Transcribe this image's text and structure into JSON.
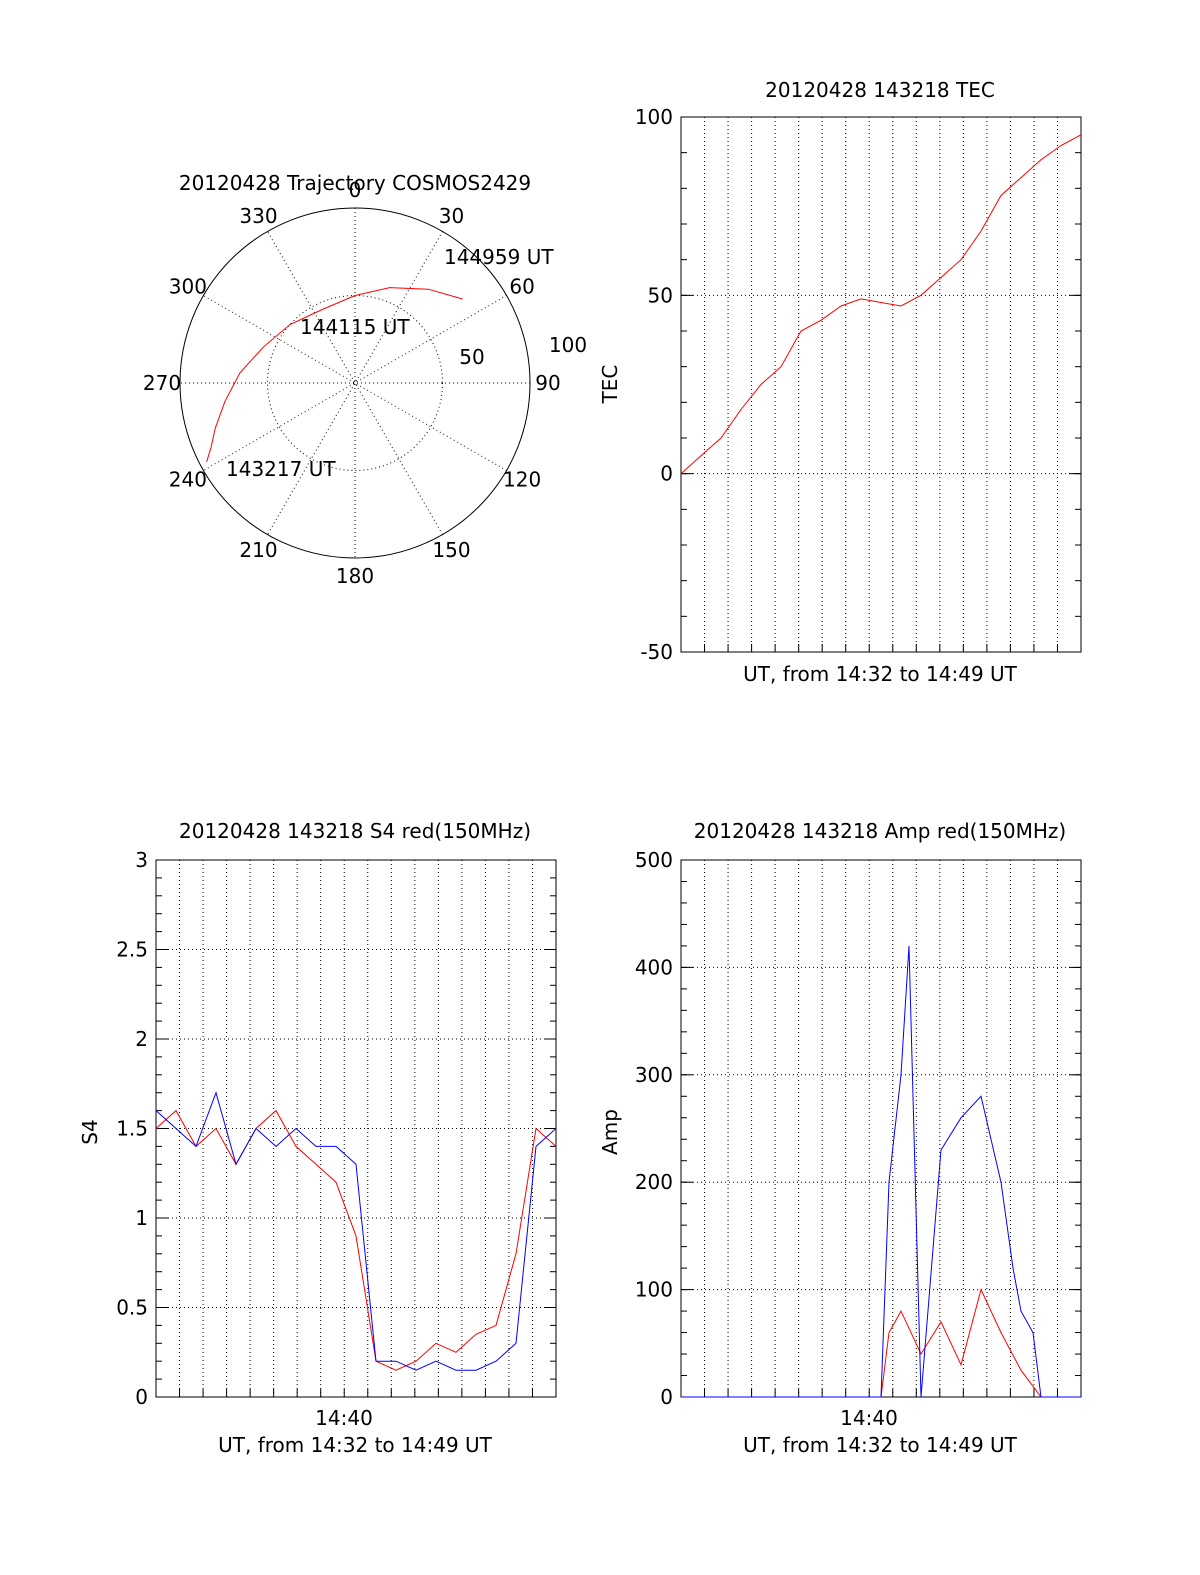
{
  "chart_data": [
    {
      "type": "polar",
      "title": "20120428 Trajectory COSMOS2429",
      "azimuth_labels": [
        "0",
        "30",
        "60",
        "90",
        "120",
        "150",
        "180",
        "210",
        "240",
        "270",
        "300",
        "330"
      ],
      "radius_labels": [
        "50",
        "100"
      ],
      "rlim": [
        0,
        100
      ],
      "grid": true,
      "series": [
        {
          "color": "#ff0000",
          "azimuth_deg": [
            242,
            246,
            252,
            262,
            275,
            292,
            312,
            336,
            0,
            20,
            38,
            52
          ],
          "radius": [
            96,
            90,
            84,
            75,
            66,
            56,
            50,
            46,
            50,
            58,
            68,
            78
          ]
        }
      ],
      "annotations": [
        {
          "text": "144959 UT",
          "az": 52,
          "r": 78
        },
        {
          "text": "144115 UT",
          "az": 345,
          "r": 30
        },
        {
          "text": "143217 UT",
          "az": 242,
          "r": 96
        }
      ]
    },
    {
      "type": "line",
      "title": "20120428 143218 TEC",
      "xlabel": "UT, from 14:32 to 14:49 UT",
      "ylabel": "TEC",
      "ylim": [
        -50,
        100
      ],
      "yticks": [
        "-50",
        "0",
        "50",
        "100"
      ],
      "grid": true,
      "series": [
        {
          "color": "#ff0000",
          "x": [
            0,
            0.05,
            0.1,
            0.15,
            0.2,
            0.25,
            0.3,
            0.35,
            0.4,
            0.45,
            0.5,
            0.55,
            0.6,
            0.65,
            0.7,
            0.75,
            0.8,
            0.85,
            0.9,
            0.95,
            1.0
          ],
          "values": [
            0,
            5,
            10,
            18,
            25,
            30,
            40,
            43,
            47,
            49,
            48,
            47,
            50,
            55,
            60,
            68,
            78,
            83,
            88,
            92,
            95
          ]
        }
      ]
    },
    {
      "type": "line",
      "title": "20120428 143218 S4 red(150MHz)",
      "xlabel": "UT, from 14:32 to 14:49 UT",
      "ylabel": "S4",
      "xticks": [
        "14:40"
      ],
      "ylim": [
        0,
        3
      ],
      "yticks": [
        "0",
        "0.5",
        "1",
        "1.5",
        "2",
        "2.5",
        "3"
      ],
      "grid": true,
      "series": [
        {
          "color": "#ff0000",
          "x": [
            0,
            0.05,
            0.1,
            0.15,
            0.2,
            0.25,
            0.3,
            0.35,
            0.4,
            0.45,
            0.5,
            0.55,
            0.6,
            0.65,
            0.7,
            0.75,
            0.8,
            0.85,
            0.9,
            0.95,
            1.0
          ],
          "values": [
            1.5,
            1.6,
            1.4,
            1.5,
            1.3,
            1.5,
            1.6,
            1.4,
            1.3,
            1.2,
            0.9,
            0.2,
            0.15,
            0.2,
            0.3,
            0.25,
            0.35,
            0.4,
            0.8,
            1.5,
            1.4
          ]
        },
        {
          "color": "#0000ff",
          "x": [
            0,
            0.05,
            0.1,
            0.15,
            0.2,
            0.25,
            0.3,
            0.35,
            0.4,
            0.45,
            0.5,
            0.55,
            0.6,
            0.65,
            0.7,
            0.75,
            0.8,
            0.85,
            0.9,
            0.95,
            1.0
          ],
          "values": [
            1.6,
            1.5,
            1.4,
            1.7,
            1.3,
            1.5,
            1.4,
            1.5,
            1.4,
            1.4,
            1.3,
            0.2,
            0.2,
            0.15,
            0.2,
            0.15,
            0.15,
            0.2,
            0.3,
            1.4,
            1.5
          ]
        }
      ]
    },
    {
      "type": "line",
      "title": "20120428 143218 Amp red(150MHz)",
      "xlabel": "UT, from 14:32 to 14:49 UT",
      "ylabel": "Amp",
      "xticks": [
        "14:40"
      ],
      "ylim": [
        0,
        500
      ],
      "yticks": [
        "0",
        "100",
        "200",
        "300",
        "400",
        "500"
      ],
      "grid": true,
      "series": [
        {
          "color": "#ff0000",
          "x": [
            0,
            0.1,
            0.2,
            0.3,
            0.4,
            0.5,
            0.52,
            0.55,
            0.6,
            0.65,
            0.7,
            0.75,
            0.8,
            0.85,
            0.88,
            0.9,
            0.95,
            1.0
          ],
          "values": [
            0,
            0,
            0,
            0,
            0,
            0,
            60,
            80,
            40,
            70,
            30,
            100,
            60,
            25,
            10,
            0,
            0,
            0
          ]
        },
        {
          "color": "#0000ff",
          "x": [
            0,
            0.1,
            0.2,
            0.3,
            0.4,
            0.5,
            0.52,
            0.55,
            0.57,
            0.6,
            0.65,
            0.7,
            0.75,
            0.8,
            0.83,
            0.85,
            0.88,
            0.9,
            0.95,
            1.0
          ],
          "values": [
            0,
            0,
            0,
            0,
            0,
            0,
            200,
            300,
            420,
            0,
            230,
            260,
            280,
            200,
            120,
            80,
            60,
            0,
            0,
            0
          ]
        }
      ]
    }
  ]
}
